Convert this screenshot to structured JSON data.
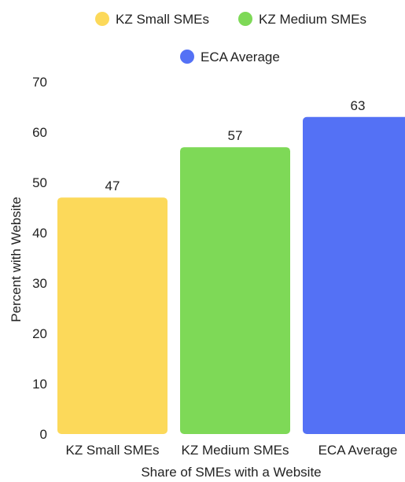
{
  "chart_data": {
    "type": "bar",
    "categories": [
      "KZ Small SMEs",
      "KZ Medium SMEs",
      "ECA Average"
    ],
    "values": [
      47,
      57,
      63
    ],
    "colors": [
      "#fcd95a",
      "#7ed957",
      "#5471f5"
    ],
    "xlabel": "Share of SMEs with a Website",
    "ylabel": "Percent with Website",
    "ylim": [
      0,
      70
    ],
    "yticks": [
      0,
      10,
      20,
      30,
      40,
      50,
      60,
      70
    ],
    "grid": false,
    "legend": {
      "placement": "top-center",
      "entries": [
        "KZ Small SMEs",
        "KZ Medium SMEs",
        "ECA Average"
      ]
    }
  }
}
